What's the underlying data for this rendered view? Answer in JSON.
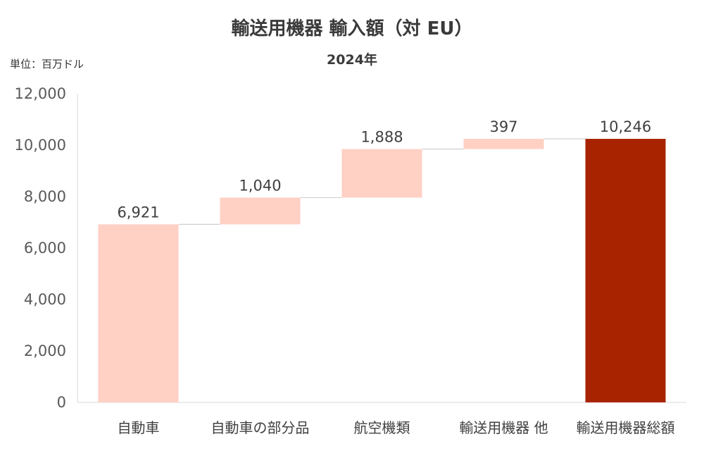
{
  "colors": {
    "step": "#ffd0c4",
    "total": "#a82400",
    "axis": "#d9d9d9",
    "connector": "#d0d0d0"
  },
  "chart_data": {
    "type": "bar",
    "subtype": "waterfall",
    "title": "輸送用機器 輸入額（対 EU）",
    "subtitle": "2024年",
    "unit_label": "単位：百万ドル",
    "categories": [
      "自動車",
      "自動車の部分品",
      "航空機類",
      "輸送用機器 他",
      "輸送用機器総額"
    ],
    "values": [
      6921,
      1040,
      1888,
      397,
      10246
    ],
    "data_labels": [
      "6,921",
      "1,040",
      "1,888",
      "397",
      "10,246"
    ],
    "bar_kind": [
      "increase",
      "increase",
      "increase",
      "increase",
      "total"
    ],
    "ylim": [
      0,
      12000
    ],
    "yticks": [
      0,
      2000,
      4000,
      6000,
      8000,
      10000,
      12000
    ],
    "ytick_labels": [
      "0",
      "2,000",
      "4,000",
      "6,000",
      "8,000",
      "10,000",
      "12,000"
    ],
    "grid": false,
    "legend": "none"
  }
}
